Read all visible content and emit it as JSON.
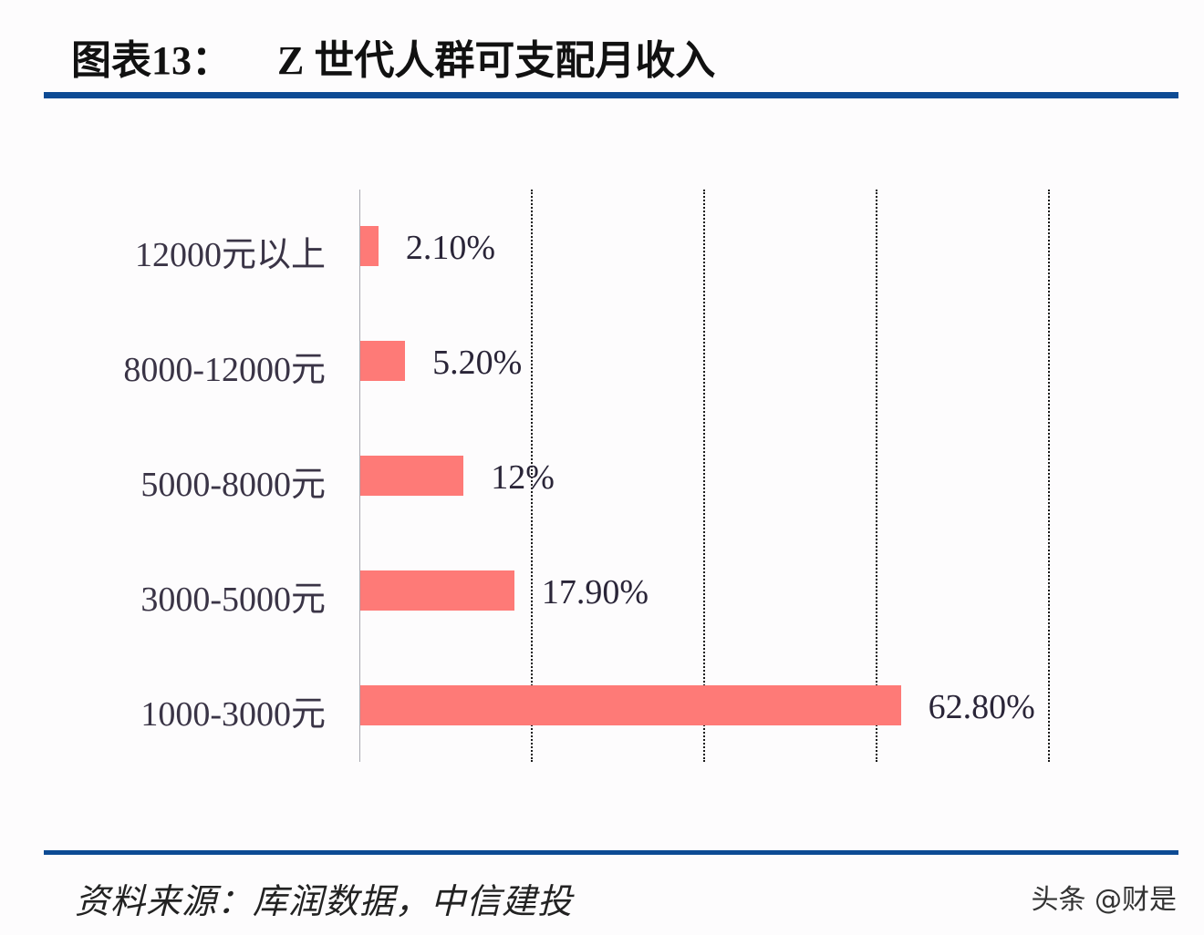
{
  "header": {
    "figure_label": "图表13：",
    "title": "Z 世代人群可支配月收入"
  },
  "colors": {
    "rule": "#0d4b94",
    "bar": "#fe7a77",
    "axis": "#a9aab2",
    "grid": "#1a1a1a"
  },
  "chart_data": {
    "type": "bar",
    "orientation": "horizontal",
    "title": "Z 世代人群可支配月收入",
    "categories": [
      "12000元以上",
      "8000-12000元",
      "5000-8000元",
      "3000-5000元",
      "1000-3000元"
    ],
    "values": [
      2.1,
      5.2,
      12,
      17.9,
      62.8
    ],
    "value_labels": [
      "2.10%",
      "5.20%",
      "12%",
      "17.90%",
      "62.80%"
    ],
    "xlabel": "",
    "ylabel": "",
    "xlim": [
      0,
      80
    ],
    "gridlines_at": [
      20,
      40,
      60,
      80
    ],
    "grid": true,
    "grid_style": "dotted vertical",
    "legend": null
  },
  "footer": {
    "source": "资料来源：库润数据，中信建投",
    "watermark": "头条 @财是"
  }
}
